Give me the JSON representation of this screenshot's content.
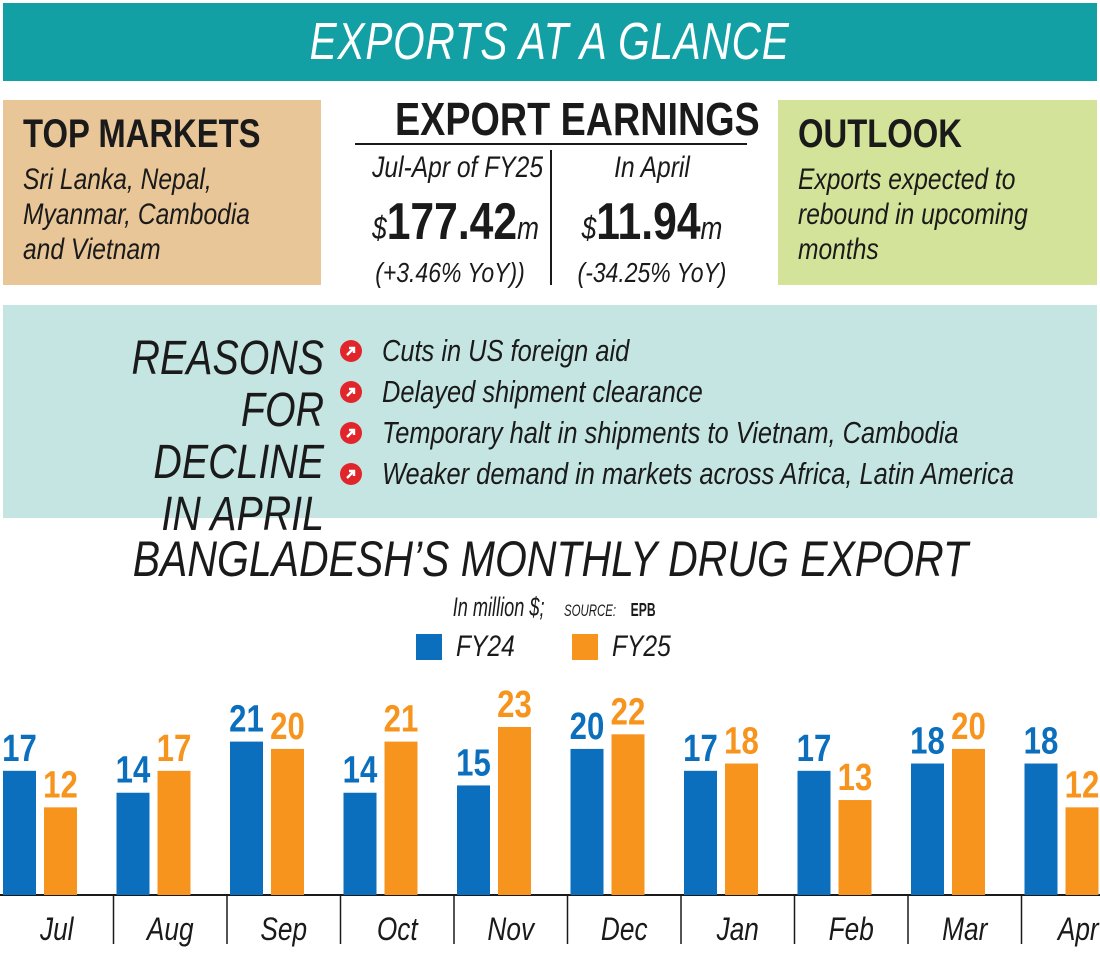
{
  "header": {
    "title": "EXPORTS AT A GLANCE"
  },
  "top_markets": {
    "heading": "TOP MARKETS",
    "body": "Sri Lanka, Nepal,\nMyanmar, Cambodia\nand Vietnam"
  },
  "export_earnings": {
    "heading": "EXPORT EARNINGS",
    "period_total": {
      "label": "Jul-Apr of FY25",
      "prefix": "$",
      "value": "177.42",
      "suffix": "m",
      "change": "(+3.46% YoY))"
    },
    "april": {
      "label": "In April",
      "prefix": "$",
      "value": "11.94",
      "suffix": "m",
      "change": "(-34.25% YoY)"
    }
  },
  "outlook": {
    "heading": "OUTLOOK",
    "body": "Exports expected to\nrebound in upcoming\nmonths"
  },
  "reasons": {
    "title": "REASONS\nFOR DECLINE\nIN APRIL",
    "items": [
      "Cuts in US foreign aid",
      "Delayed shipment clearance",
      "Temporary halt in shipments to Vietnam, Cambodia",
      "Weaker demand in markets across Africa, Latin America"
    ],
    "icon": "arrow-circle-icon",
    "icon_color": "#e0262b"
  },
  "colors": {
    "header_band": "#12a0a5",
    "markets_box": "#e8c697",
    "outlook_box": "#d4e39a",
    "reasons_band": "#c5e5e2"
  },
  "chart_data": {
    "type": "bar",
    "title": "BANGLADESH’S MONTHLY DRUG EXPORT",
    "subtitle": "In million $;",
    "source_label": "SOURCE:",
    "source": "EPB",
    "categories": [
      "Jul",
      "Aug",
      "Sep",
      "Oct",
      "Nov",
      "Dec",
      "Jan",
      "Feb",
      "Mar",
      "Apr"
    ],
    "series": [
      {
        "name": "FY24",
        "color": "#0b6fbd",
        "values": [
          17,
          14,
          21,
          14,
          15,
          20,
          17,
          17,
          18,
          18
        ]
      },
      {
        "name": "FY25",
        "color": "#f7941d",
        "values": [
          12,
          17,
          20,
          21,
          23,
          22,
          18,
          13,
          20,
          12
        ]
      }
    ],
    "ylim": [
      0,
      23
    ],
    "legend": "top-center",
    "grid": false
  }
}
